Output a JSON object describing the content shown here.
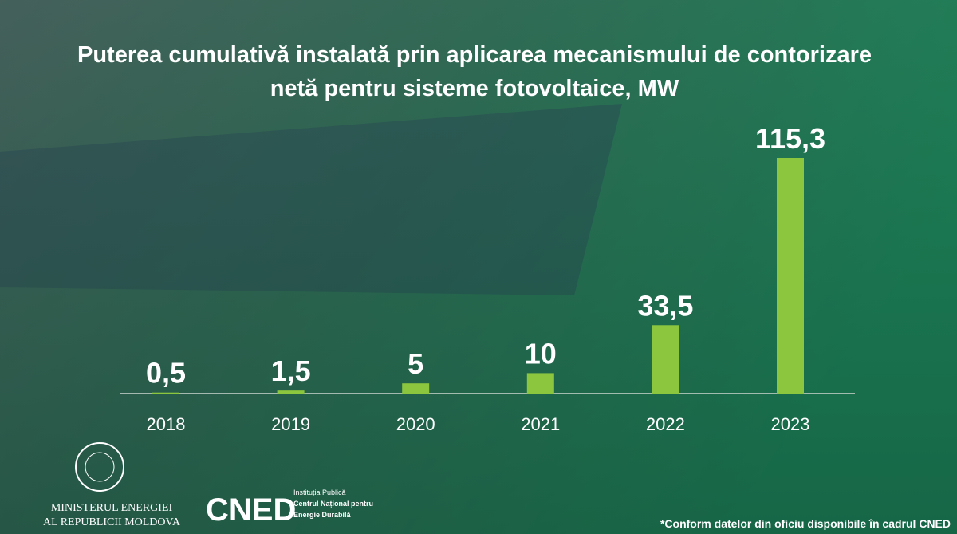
{
  "chart_data": {
    "type": "bar",
    "title": "Puterea cumulativă instalată prin aplicarea mecanismului de contorizare netă pentru sisteme fotovoltaice, MW",
    "categories": [
      "2018",
      "2019",
      "2020",
      "2021",
      "2022",
      "2023"
    ],
    "values": [
      0.5,
      1.5,
      5,
      10,
      33.5,
      115.3
    ],
    "value_labels": [
      "0,5",
      "1,5",
      "5",
      "10",
      "33,5",
      "115,3"
    ],
    "color": "#8cc63f"
  },
  "footer": {
    "ministry": [
      "MINISTERUL ENERGIEI",
      "AL REPUBLICII MOLDOVA"
    ],
    "logo": "CNED",
    "institution": [
      "Instituția Publică",
      "Centrul Național pentru",
      "Energie Durabilă"
    ],
    "note": "*Conform datelor din oficiu disponibile în cadrul CNED"
  }
}
